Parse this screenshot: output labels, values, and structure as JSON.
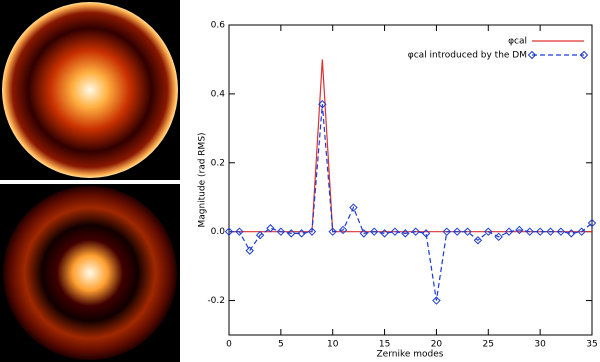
{
  "chart_data": {
    "type": "line",
    "xlabel": "Zernike modes",
    "ylabel": "Magnitude (rad RMS)",
    "x": [
      0,
      1,
      2,
      3,
      4,
      5,
      6,
      7,
      8,
      9,
      10,
      11,
      12,
      13,
      14,
      15,
      16,
      17,
      18,
      19,
      20,
      21,
      22,
      23,
      24,
      25,
      26,
      27,
      28,
      29,
      30,
      31,
      32,
      33,
      34,
      35
    ],
    "series": [
      {
        "name": "φcal",
        "color": "#e03030",
        "style": "solid",
        "marker": false,
        "values": [
          0,
          0,
          0,
          0,
          0,
          0,
          0,
          0,
          0,
          0.5,
          0,
          0,
          0,
          0,
          0,
          0,
          0,
          0,
          0,
          0,
          0,
          0,
          0,
          0,
          0,
          0,
          0,
          0,
          0,
          0,
          0,
          0,
          0,
          0,
          0,
          0
        ]
      },
      {
        "name": "φcal introduced by the DM",
        "color": "#1a3ad8",
        "style": "dashed",
        "marker": true,
        "values": [
          0,
          0,
          -0.055,
          -0.01,
          0.01,
          0,
          -0.005,
          -0.005,
          0,
          0.37,
          0,
          0.005,
          0.07,
          -0.005,
          0,
          -0.005,
          0,
          -0.005,
          0,
          -0.005,
          -0.2,
          0,
          0,
          0,
          -0.025,
          0,
          -0.015,
          0,
          0.005,
          0,
          0,
          0,
          0,
          -0.005,
          0,
          0.025
        ]
      }
    ],
    "xlim": [
      0,
      35
    ],
    "xticks": [
      0,
      5,
      10,
      15,
      20,
      25,
      30,
      35
    ],
    "ylim": [
      -0.3,
      0.6
    ],
    "yticks": [
      {
        "value": -0.2,
        "label": "-0.2"
      },
      {
        "value": 0,
        "label": "0.0"
      },
      {
        "value": 0.2,
        "label": "0.2"
      },
      {
        "value": 0.4,
        "label": "0.4"
      },
      {
        "value": 0.6,
        "label": "0.6"
      }
    ],
    "legend": "upper right"
  }
}
